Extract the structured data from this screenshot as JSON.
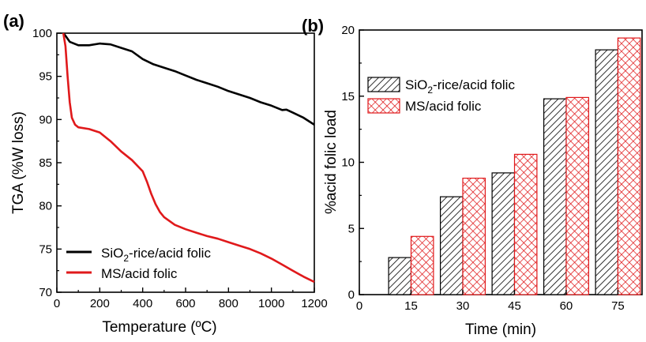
{
  "chart_data": [
    {
      "panel_label": "(a)",
      "type": "line",
      "xlabel": "Temperature (ºC)",
      "ylabel": "TGA (%W loss)",
      "xlim": [
        0,
        1200
      ],
      "ylim": [
        70,
        100
      ],
      "xticks": [
        0,
        200,
        400,
        600,
        800,
        1000,
        1200
      ],
      "yticks": [
        70,
        75,
        80,
        85,
        90,
        95,
        100
      ],
      "legend_position": "bottom-left",
      "series": [
        {
          "name_parts": [
            "SiO",
            "2",
            "-rice/acid folic"
          ],
          "color": "#000000",
          "points": [
            [
              30,
              100
            ],
            [
              40,
              99.7
            ],
            [
              60,
              99
            ],
            [
              100,
              98.6
            ],
            [
              150,
              98.6
            ],
            [
              200,
              98.8
            ],
            [
              250,
              98.7
            ],
            [
              300,
              98.3
            ],
            [
              350,
              97.9
            ],
            [
              400,
              97.0
            ],
            [
              450,
              96.4
            ],
            [
              500,
              96.0
            ],
            [
              550,
              95.6
            ],
            [
              600,
              95.1
            ],
            [
              650,
              94.6
            ],
            [
              700,
              94.2
            ],
            [
              750,
              93.8
            ],
            [
              800,
              93.3
            ],
            [
              850,
              92.9
            ],
            [
              900,
              92.5
            ],
            [
              950,
              92.0
            ],
            [
              1000,
              91.6
            ],
            [
              1050,
              91.1
            ],
            [
              1070,
              91.15
            ],
            [
              1100,
              90.8
            ],
            [
              1150,
              90.2
            ],
            [
              1200,
              89.4
            ]
          ]
        },
        {
          "name": "MS/acid folic",
          "color": "#e0191b",
          "points": [
            [
              30,
              100
            ],
            [
              40,
              98.5
            ],
            [
              50,
              95
            ],
            [
              60,
              92
            ],
            [
              70,
              90.2
            ],
            [
              85,
              89.4
            ],
            [
              100,
              89.1
            ],
            [
              150,
              88.9
            ],
            [
              200,
              88.5
            ],
            [
              250,
              87.5
            ],
            [
              300,
              86.3
            ],
            [
              350,
              85.3
            ],
            [
              400,
              84.0
            ],
            [
              420,
              82.8
            ],
            [
              440,
              81.4
            ],
            [
              460,
              80.2
            ],
            [
              480,
              79.3
            ],
            [
              500,
              78.7
            ],
            [
              550,
              77.8
            ],
            [
              600,
              77.3
            ],
            [
              650,
              76.9
            ],
            [
              700,
              76.5
            ],
            [
              750,
              76.2
            ],
            [
              800,
              75.8
            ],
            [
              850,
              75.4
            ],
            [
              900,
              75.0
            ],
            [
              950,
              74.5
            ],
            [
              1000,
              73.9
            ],
            [
              1050,
              73.2
            ],
            [
              1100,
              72.5
            ],
            [
              1150,
              71.8
            ],
            [
              1200,
              71.2
            ]
          ]
        }
      ]
    },
    {
      "panel_label": "(b)",
      "type": "bar",
      "xlabel": "Time (min)",
      "ylabel": "%acid folic load",
      "xlim": [
        0,
        82
      ],
      "ylim": [
        0,
        20
      ],
      "xticks": [
        0,
        15,
        30,
        45,
        60,
        75
      ],
      "yticks": [
        0,
        5,
        10,
        15,
        20
      ],
      "legend_position": "top-left",
      "categories": [
        15,
        30,
        45,
        60,
        75
      ],
      "series": [
        {
          "name_parts": [
            "SiO",
            "2",
            "-rice/acid folic"
          ],
          "color": "#000000",
          "pattern": "diagonal-hatch",
          "values": [
            2.8,
            7.4,
            9.2,
            14.8,
            18.5
          ]
        },
        {
          "name": "MS/acid folic",
          "color": "#e0191b",
          "pattern": "crosshatch",
          "values": [
            4.4,
            8.8,
            10.6,
            14.9,
            19.4
          ]
        }
      ]
    }
  ]
}
